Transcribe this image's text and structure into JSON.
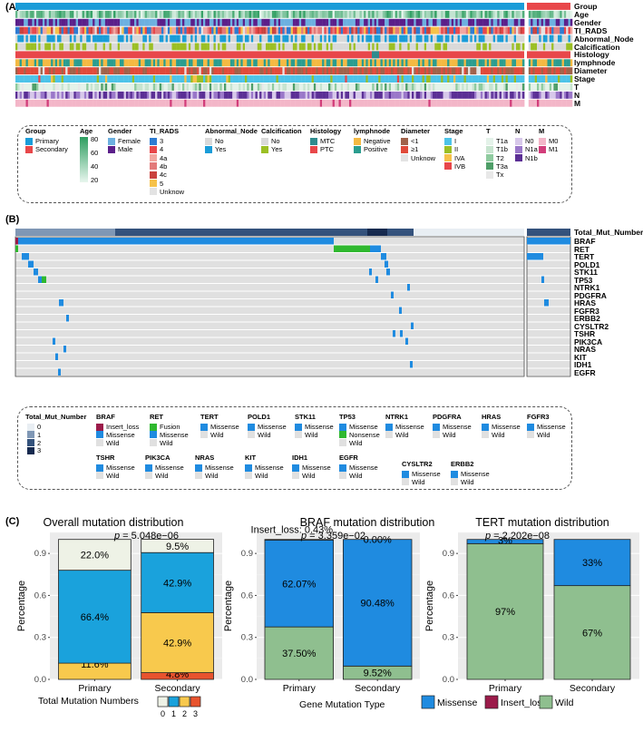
{
  "panels": {
    "a": "(A)",
    "b": "(B)",
    "c": "(C)"
  },
  "panel_a": {
    "tracks": [
      "Group",
      "Age",
      "Gender",
      "TI_RADS",
      "Abnormal_Node",
      "Calcification",
      "Histology",
      "lymphnode",
      "Diameter",
      "Stage",
      "T",
      "N",
      "M"
    ],
    "legend": [
      {
        "title": "Group",
        "items": [
          {
            "label": "Primary",
            "color": "#1a9cd8"
          },
          {
            "label": "Secondary",
            "color": "#e8474a"
          }
        ]
      },
      {
        "title": "Age",
        "gradient": {
          "from": "#e8f6ee",
          "to": "#2e9e60"
        },
        "ticks": [
          "80",
          "60",
          "40",
          "20"
        ]
      },
      {
        "title": "Gender",
        "items": [
          {
            "label": "Female",
            "color": "#6cb0e0"
          },
          {
            "label": "Male",
            "color": "#5b1f8a"
          }
        ]
      },
      {
        "title": "TI_RADS",
        "items": [
          {
            "label": "3",
            "color": "#2d7bd2"
          },
          {
            "label": "4",
            "color": "#e8474a"
          },
          {
            "label": "4a",
            "color": "#f2a7a0"
          },
          {
            "label": "4b",
            "color": "#e37a7a"
          },
          {
            "label": "4c",
            "color": "#c9423e"
          },
          {
            "label": "5",
            "color": "#f6c24a"
          },
          {
            "label": "Unknow",
            "color": "#e3e3e3"
          }
        ]
      },
      {
        "title": "Abnormal_Node",
        "items": [
          {
            "label": "No",
            "color": "#d9d9d9"
          },
          {
            "label": "Yes",
            "color": "#1a9cd8"
          }
        ]
      },
      {
        "title": "Calcification",
        "items": [
          {
            "label": "No",
            "color": "#d9d9d9"
          },
          {
            "label": "Yes",
            "color": "#9bbf24"
          }
        ]
      },
      {
        "title": "Histology",
        "items": [
          {
            "label": "MTC",
            "color": "#2f8b8e"
          },
          {
            "label": "PTC",
            "color": "#e8474a"
          }
        ]
      },
      {
        "title": "lymphnode",
        "items": [
          {
            "label": "Negative",
            "color": "#f4b942"
          },
          {
            "label": "Positive",
            "color": "#2a9d8f"
          }
        ]
      },
      {
        "title": "Diameter",
        "items": [
          {
            "label": "<1",
            "color": "#a0624a"
          },
          {
            "label": "≥1",
            "color": "#e04a3a"
          },
          {
            "label": "Unknow",
            "color": "#e3e3e3"
          }
        ]
      },
      {
        "title": "Stage",
        "items": [
          {
            "label": "I",
            "color": "#4dc3e8"
          },
          {
            "label": "II",
            "color": "#9bbf24"
          },
          {
            "label": "IVA",
            "color": "#f6c24a"
          },
          {
            "label": "IVB",
            "color": "#e8474a"
          }
        ]
      },
      {
        "title": "T",
        "items": [
          {
            "label": "T1a",
            "color": "#e4f2e9"
          },
          {
            "label": "T1b",
            "color": "#c7e4cf"
          },
          {
            "label": "T2",
            "color": "#8fcb9f"
          },
          {
            "label": "T3a",
            "color": "#4f9e68"
          },
          {
            "label": "Tx",
            "color": "#e8e8e8"
          }
        ]
      },
      {
        "title": "N",
        "items": [
          {
            "label": "N0",
            "color": "#d7c8ea"
          },
          {
            "label": "N1a",
            "color": "#9a77c9"
          },
          {
            "label": "N1b",
            "color": "#5b2f95"
          }
        ]
      },
      {
        "title": "M",
        "items": [
          {
            "label": "M0",
            "color": "#f3b6c8"
          },
          {
            "label": "M1",
            "color": "#d23d7a"
          }
        ]
      }
    ]
  },
  "panel_b": {
    "top_track": "Total_Mut_Number",
    "genes": [
      "BRAF",
      "RET",
      "TERT",
      "POLD1",
      "STK11",
      "TP53",
      "NTRK1",
      "PDGFRA",
      "HRAS",
      "FGFR3",
      "ERBB2",
      "CYSLTR2",
      "TSHR",
      "PIK3CA",
      "NRAS",
      "KIT",
      "IDH1",
      "EGFR"
    ],
    "legend_tmn": {
      "title": "Total_Mut_Number",
      "levels": [
        {
          "label": "0",
          "color": "#e8eef3"
        },
        {
          "label": "1",
          "color": "#7f97b5"
        },
        {
          "label": "2",
          "color": "#34527c"
        },
        {
          "label": "3",
          "color": "#162a4f"
        }
      ]
    },
    "legend_row1": [
      {
        "title": "BRAF",
        "items": [
          {
            "label": "Insert_loss",
            "color": "#9b1b4a"
          },
          {
            "label": "Missense",
            "color": "#1f8be0"
          },
          {
            "label": "Wild",
            "color": "#e0e0e0"
          }
        ]
      },
      {
        "title": "RET",
        "items": [
          {
            "label": "Fusion",
            "color": "#2fb82f"
          },
          {
            "label": "Missense",
            "color": "#1f8be0"
          },
          {
            "label": "Wild",
            "color": "#e0e0e0"
          }
        ]
      },
      {
        "title": "TERT",
        "items": [
          {
            "label": "Missense",
            "color": "#1f8be0"
          },
          {
            "label": "Wild",
            "color": "#e0e0e0"
          }
        ]
      },
      {
        "title": "POLD1",
        "items": [
          {
            "label": "Missense",
            "color": "#1f8be0"
          },
          {
            "label": "Wild",
            "color": "#e0e0e0"
          }
        ]
      },
      {
        "title": "STK11",
        "items": [
          {
            "label": "Missense",
            "color": "#1f8be0"
          },
          {
            "label": "Wild",
            "color": "#e0e0e0"
          }
        ]
      },
      {
        "title": "TP53",
        "items": [
          {
            "label": "Missense",
            "color": "#1f8be0"
          },
          {
            "label": "Nonsense",
            "color": "#2fb82f"
          },
          {
            "label": "Wild",
            "color": "#e0e0e0"
          }
        ]
      },
      {
        "title": "NTRK1",
        "items": [
          {
            "label": "Missense",
            "color": "#1f8be0"
          },
          {
            "label": "Wild",
            "color": "#e0e0e0"
          }
        ]
      },
      {
        "title": "PDGFRA",
        "items": [
          {
            "label": "Missense",
            "color": "#1f8be0"
          },
          {
            "label": "Wild",
            "color": "#e0e0e0"
          }
        ]
      },
      {
        "title": "HRAS",
        "items": [
          {
            "label": "Missense",
            "color": "#1f8be0"
          },
          {
            "label": "Wild",
            "color": "#e0e0e0"
          }
        ]
      },
      {
        "title": "FGFR3",
        "items": [
          {
            "label": "Missense",
            "color": "#1f8be0"
          },
          {
            "label": "Wild",
            "color": "#e0e0e0"
          }
        ]
      }
    ],
    "legend_row2": [
      {
        "title": "TSHR",
        "items": [
          {
            "label": "Missense",
            "color": "#1f8be0"
          },
          {
            "label": "Wild",
            "color": "#e0e0e0"
          }
        ]
      },
      {
        "title": "PIK3CA",
        "items": [
          {
            "label": "Missense",
            "color": "#1f8be0"
          },
          {
            "label": "Wild",
            "color": "#e0e0e0"
          }
        ]
      },
      {
        "title": "NRAS",
        "items": [
          {
            "label": "Missense",
            "color": "#1f8be0"
          },
          {
            "label": "Wild",
            "color": "#e0e0e0"
          }
        ]
      },
      {
        "title": "KIT",
        "items": [
          {
            "label": "Missense",
            "color": "#1f8be0"
          },
          {
            "label": "Wild",
            "color": "#e0e0e0"
          }
        ]
      },
      {
        "title": "IDH1",
        "items": [
          {
            "label": "Missense",
            "color": "#1f8be0"
          },
          {
            "label": "Wild",
            "color": "#e0e0e0"
          }
        ]
      },
      {
        "title": "EGFR",
        "items": [
          {
            "label": "Missense",
            "color": "#1f8be0"
          },
          {
            "label": "Wild",
            "color": "#e0e0e0"
          }
        ]
      },
      {
        "title": "CYSLTR2",
        "items": [
          {
            "label": "Missense",
            "color": "#1f8be0"
          },
          {
            "label": "Wild",
            "color": "#e0e0e0"
          }
        ]
      },
      {
        "title": "ERBB2",
        "items": [
          {
            "label": "Missense",
            "color": "#1f8be0"
          },
          {
            "label": "Wild",
            "color": "#e0e0e0"
          }
        ]
      }
    ]
  },
  "chart_data": [
    {
      "type": "bar",
      "stacked": true,
      "title": "Overall mutation distribution",
      "pvalue": "5.048e−06",
      "ylabel": "Percentage",
      "ylim": [
        0,
        1
      ],
      "yticks": [
        "0.0",
        "0.3",
        "0.6",
        "0.9"
      ],
      "categories": [
        "Primary",
        "Secondary"
      ],
      "series": [
        {
          "name": "3",
          "color": "#e8532e",
          "values": [
            0.0,
            0.048
          ],
          "labels": [
            "0.0%",
            "4.8%"
          ]
        },
        {
          "name": "2",
          "color": "#f8c94d",
          "values": [
            0.116,
            0.429
          ],
          "labels": [
            "11.6%",
            "42.9%"
          ]
        },
        {
          "name": "1",
          "color": "#1aa2dc",
          "values": [
            0.664,
            0.429
          ],
          "labels": [
            "66.4%",
            "42.9%"
          ]
        },
        {
          "name": "0",
          "color": "#eef2e6",
          "values": [
            0.22,
            0.095
          ],
          "labels": [
            "22.0%",
            "9.5%"
          ]
        }
      ],
      "legend_title": "Total Mutation Numbers"
    },
    {
      "type": "bar",
      "stacked": true,
      "title": "BRAF mutation distribution",
      "pvalue": "3.359e−02",
      "ylabel": "Percentage",
      "ylim": [
        0,
        1
      ],
      "yticks": [
        "0.0",
        "0.3",
        "0.6",
        "0.9"
      ],
      "categories": [
        "Primary",
        "Secondary"
      ],
      "series": [
        {
          "name": "Wild",
          "color": "#8fbf8f",
          "values": [
            0.375,
            0.0952
          ],
          "labels": [
            "37.50%",
            "9.52%"
          ]
        },
        {
          "name": "Missense",
          "color": "#1f8be0",
          "values": [
            0.6207,
            0.9048
          ],
          "labels": [
            "62.07%",
            "90.48%"
          ]
        },
        {
          "name": "Insert_loss",
          "color": "#9b1b4a",
          "values": [
            0.0043,
            0.0
          ],
          "labels": [
            "Insert_loss: 0.43%",
            "0.00%"
          ]
        }
      ]
    },
    {
      "type": "bar",
      "stacked": true,
      "title": "TERT mutation distribution",
      "pvalue": "2.202e−08",
      "ylabel": "Percentage",
      "ylim": [
        0,
        1
      ],
      "yticks": [
        "0.0",
        "0.3",
        "0.6",
        "0.9"
      ],
      "categories": [
        "Primary",
        "Secondary"
      ],
      "series": [
        {
          "name": "Wild",
          "color": "#8fbf8f",
          "values": [
            0.97,
            0.67
          ],
          "labels": [
            "97%",
            "67%"
          ]
        },
        {
          "name": "Missense",
          "color": "#1f8be0",
          "values": [
            0.03,
            0.33
          ],
          "labels": [
            "3%",
            "33%"
          ]
        }
      ]
    }
  ],
  "bottom_legend": {
    "tmn_title": "Total Mutation Numbers",
    "tmn_levels": [
      {
        "label": "0",
        "color": "#eef2e6"
      },
      {
        "label": "1",
        "color": "#1aa2dc"
      },
      {
        "label": "2",
        "color": "#f8c94d"
      },
      {
        "label": "3",
        "color": "#e8532e"
      }
    ],
    "gmt_title": "Gene Mutation Type",
    "gmt_items": [
      {
        "label": "Missense",
        "color": "#1f8be0"
      },
      {
        "label": "Insert_loss",
        "color": "#9b1b4a"
      },
      {
        "label": "Wild",
        "color": "#8fbf8f"
      }
    ]
  }
}
